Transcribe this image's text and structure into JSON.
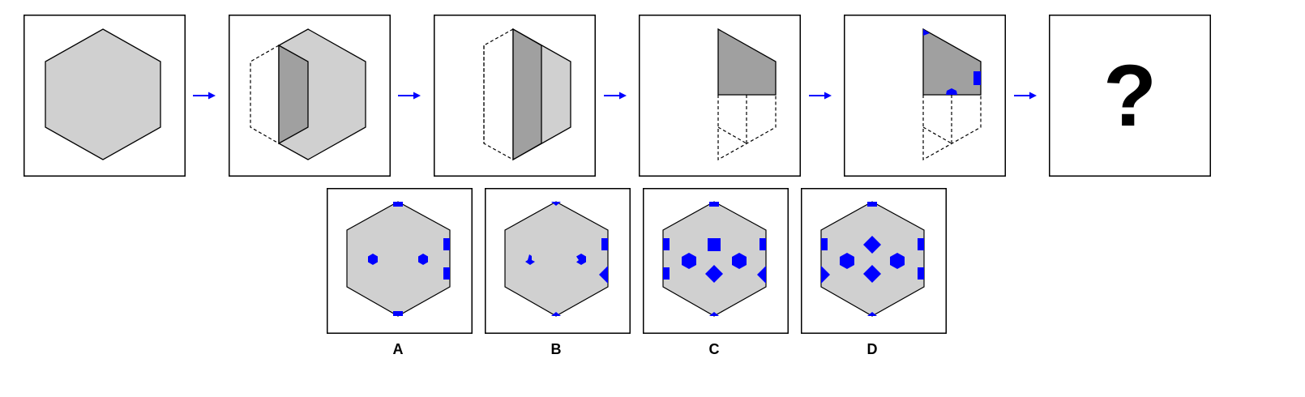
{
  "sequence": {
    "question_mark": "?"
  },
  "options": [
    {
      "label": "A"
    },
    {
      "label": "B"
    },
    {
      "label": "C"
    },
    {
      "label": "D"
    }
  ],
  "colors": {
    "fill_light": "#d0d0d0",
    "fill_dark": "#a0a0a0",
    "mark_blue": "#0000ff",
    "arrow_blue": "#0000ff",
    "stroke": "#000000"
  }
}
